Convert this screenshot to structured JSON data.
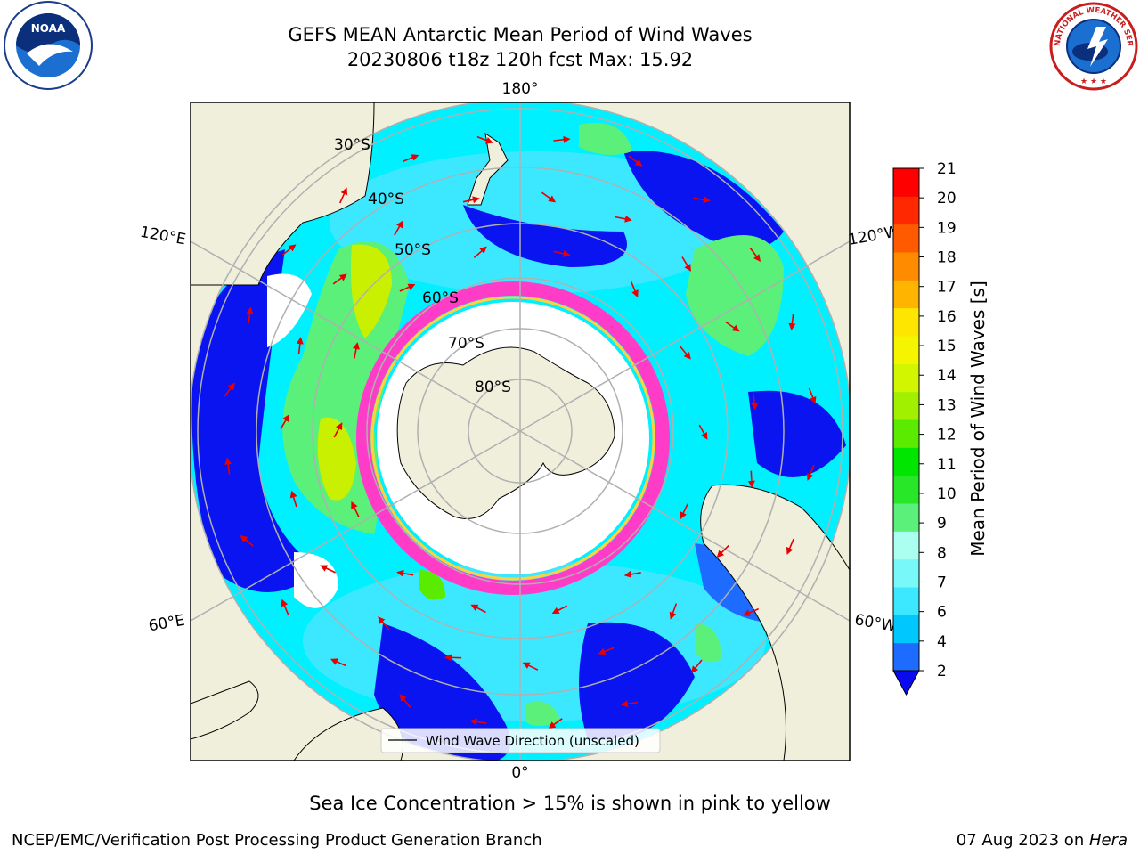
{
  "title_line1": "GEFS MEAN Antarctic Mean Period of Wind Waves",
  "title_line2": "20230806 t18z 120h fcst   Max: 15.92",
  "subtitle": "Sea Ice Concentration > 15% is shown in pink to yellow",
  "footer_left": "NCEP/EMC/Verification Post Processing Product Generation Branch",
  "footer_right_date": "07 Aug 2023 on ",
  "footer_right_host": "Hera",
  "logos": {
    "left": "NOAA",
    "right": "NATIONAL WEATHER SERVICE"
  },
  "legend_label": "Wind Wave Direction (unscaled)",
  "colorbar": {
    "label": "Mean Period of Wind Waves [s]",
    "ticks": [
      "2",
      "4",
      "6",
      "7",
      "8",
      "9",
      "10",
      "11",
      "12",
      "13",
      "14",
      "15",
      "16",
      "17",
      "18",
      "19",
      "20",
      "21"
    ],
    "colors": [
      "#1e6bff",
      "#00c8ff",
      "#3ce8ff",
      "#78f8f8",
      "#aafff0",
      "#5af07a",
      "#28e628",
      "#00e600",
      "#5aeb00",
      "#a0f000",
      "#d2f500",
      "#f5f500",
      "#ffe600",
      "#ffb400",
      "#ff8c00",
      "#ff5a00",
      "#ff2800",
      "#ff0000"
    ],
    "extend_color": "#0a0af0"
  },
  "meridian_labels": [
    {
      "text": "180°"
    },
    {
      "text": "120°E"
    },
    {
      "text": "120°W"
    },
    {
      "text": "60°E"
    },
    {
      "text": "60°W"
    },
    {
      "text": "0°"
    }
  ],
  "parallel_labels": [
    "30°S",
    "40°S",
    "50°S",
    "60°S",
    "70°S",
    "80°S"
  ],
  "colors": {
    "land": "#efefdb",
    "deep_blue": "#0a14f0",
    "mid_blue": "#1e6bff",
    "cyan": "#00f0ff",
    "light_cyan": "#a0fff8",
    "green": "#5af07a",
    "yellowgreen": "#c8f000",
    "ice_pink": "#ff3cc8",
    "arrow": "#e60000",
    "grid": "#b0b0b0"
  }
}
